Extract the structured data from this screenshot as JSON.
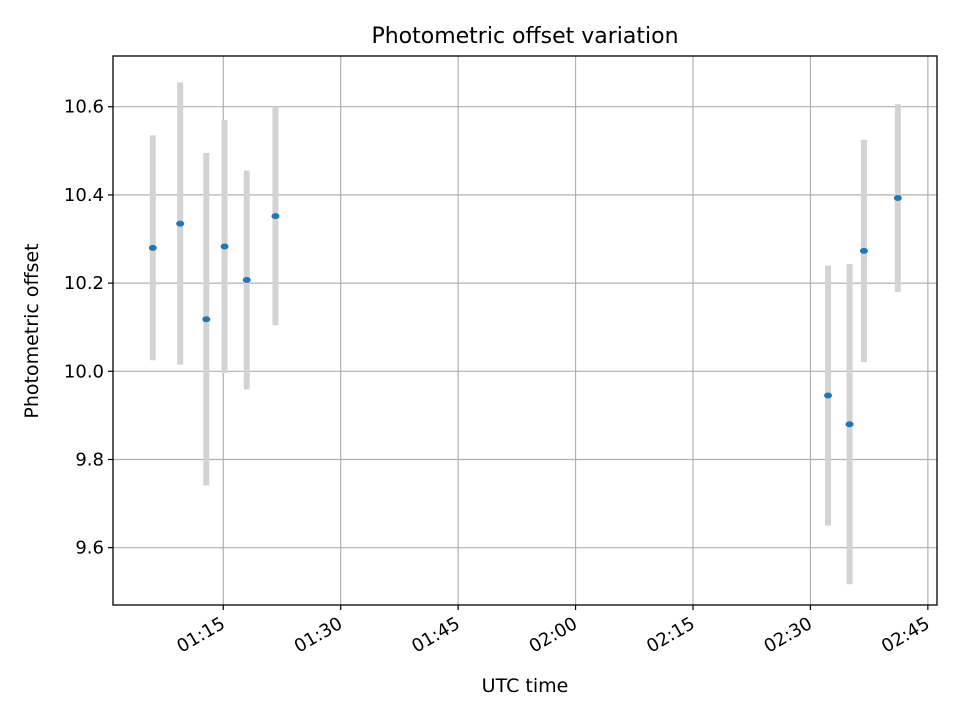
{
  "chart_data": {
    "type": "scatter",
    "title": "Photometric offset variation",
    "xlabel": "UTC time",
    "ylabel": "Photometric offset",
    "xlim": [
      "01:00:55",
      "02:46:10"
    ],
    "ylim": [
      9.47,
      10.715
    ],
    "grid": true,
    "x_ticks": [
      "01:15",
      "01:30",
      "01:45",
      "02:00",
      "02:15",
      "02:30",
      "02:45"
    ],
    "y_ticks": [
      9.6,
      9.8,
      10.0,
      10.2,
      10.4,
      10.6
    ],
    "y_tick_labels": [
      "9.6",
      "9.8",
      "10.0",
      "10.2",
      "10.4",
      "10.6"
    ],
    "points": [
      {
        "x": "01:06:00",
        "y": 10.28,
        "err": 0.255
      },
      {
        "x": "01:09:30",
        "y": 10.335,
        "err": 0.32
      },
      {
        "x": "01:12:50",
        "y": 10.118,
        "err": 0.377
      },
      {
        "x": "01:15:10",
        "y": 10.283,
        "err": 0.287
      },
      {
        "x": "01:18:00",
        "y": 10.207,
        "err": 0.248
      },
      {
        "x": "01:21:40",
        "y": 10.352,
        "err": 0.248
      },
      {
        "x": "02:32:15",
        "y": 9.945,
        "err": 0.295
      },
      {
        "x": "02:35:00",
        "y": 9.88,
        "err": 0.363
      },
      {
        "x": "02:36:50",
        "y": 10.273,
        "err": 0.252
      },
      {
        "x": "02:41:10",
        "y": 10.393,
        "err": 0.213
      }
    ],
    "marker_color": "#1f77b4",
    "errorbar_color": "#d3d3d3"
  }
}
